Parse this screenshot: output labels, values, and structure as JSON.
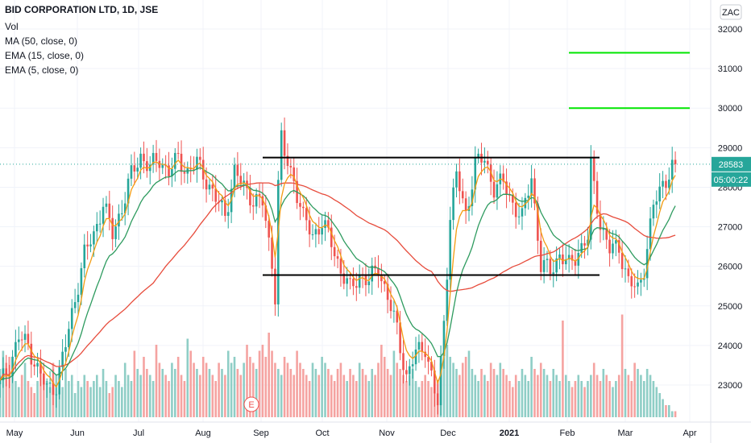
{
  "header": {
    "title": "BID CORPORATION LTD, 1D, JSE",
    "indicators": [
      "Vol",
      "MA (50, close, 0)",
      "EMA (15, close, 0)",
      "EMA (5, close, 0)"
    ],
    "currency": "ZAC"
  },
  "chart_data": {
    "type": "candlestick",
    "x_labels": [
      "May",
      "Jun",
      "Jul",
      "Aug",
      "Sep",
      "Oct",
      "Nov",
      "Dec",
      "2021",
      "Feb",
      "Mar",
      "Apr"
    ],
    "y_ticks": [
      23000,
      24000,
      25000,
      26000,
      27000,
      28000,
      29000,
      30000,
      31000,
      32000
    ],
    "ylim": [
      22200,
      32400
    ],
    "last_price": 28583,
    "countdown": "05:00:22",
    "event_marker": "E",
    "horizontal_lines": [
      {
        "value": 28750,
        "from": "Sep",
        "to": "Feb",
        "color": "#000000"
      },
      {
        "value": 25780,
        "from": "Sep",
        "to": "Feb",
        "color": "#000000"
      },
      {
        "value": 31400,
        "from": "Feb",
        "to": "Mar",
        "color": "#00e600"
      },
      {
        "value": 30000,
        "from": "Feb",
        "to": "Mar",
        "color": "#00e600"
      }
    ],
    "price_path_points": [
      [
        0,
        23000
      ],
      [
        3,
        23500
      ],
      [
        6,
        24200
      ],
      [
        9,
        24000
      ],
      [
        12,
        23400
      ],
      [
        15,
        22900
      ],
      [
        18,
        23000
      ],
      [
        21,
        24000
      ],
      [
        24,
        25200
      ],
      [
        27,
        26300
      ],
      [
        30,
        26800
      ],
      [
        33,
        27600
      ],
      [
        36,
        26800
      ],
      [
        39,
        27500
      ],
      [
        42,
        28300
      ],
      [
        45,
        28800
      ],
      [
        48,
        28500
      ],
      [
        51,
        28700
      ],
      [
        54,
        28400
      ],
      [
        57,
        28700
      ],
      [
        60,
        28400
      ],
      [
        63,
        28600
      ],
      [
        66,
        28200
      ],
      [
        69,
        27700
      ],
      [
        72,
        27300
      ],
      [
        75,
        28400
      ],
      [
        78,
        28000
      ],
      [
        81,
        27700
      ],
      [
        84,
        27600
      ],
      [
        87,
        26100
      ],
      [
        88,
        25300
      ],
      [
        89,
        28100
      ],
      [
        90,
        29200
      ],
      [
        91,
        28800
      ],
      [
        94,
        28200
      ],
      [
        97,
        27200
      ],
      [
        100,
        26800
      ],
      [
        103,
        27100
      ],
      [
        106,
        26600
      ],
      [
        109,
        25900
      ],
      [
        112,
        25400
      ],
      [
        115,
        25800
      ],
      [
        118,
        25600
      ],
      [
        121,
        26000
      ],
      [
        124,
        25200
      ],
      [
        127,
        24400
      ],
      [
        130,
        23200
      ],
      [
        133,
        23800
      ],
      [
        136,
        24000
      ],
      [
        139,
        22800
      ],
      [
        140,
        22500
      ],
      [
        142,
        24600
      ],
      [
        144,
        27300
      ],
      [
        146,
        28300
      ],
      [
        149,
        27300
      ],
      [
        152,
        28600
      ],
      [
        155,
        28700
      ],
      [
        158,
        28000
      ],
      [
        161,
        28100
      ],
      [
        164,
        27600
      ],
      [
        167,
        27200
      ],
      [
        170,
        28300
      ],
      [
        173,
        26000
      ],
      [
        176,
        25900
      ],
      [
        179,
        26300
      ],
      [
        182,
        26000
      ],
      [
        185,
        26400
      ],
      [
        188,
        26700
      ],
      [
        189,
        28500
      ],
      [
        192,
        27100
      ],
      [
        195,
        26400
      ],
      [
        198,
        26500
      ],
      [
        201,
        25600
      ],
      [
        204,
        25400
      ],
      [
        206,
        26000
      ],
      [
        209,
        27500
      ],
      [
        212,
        28100
      ],
      [
        215,
        28500
      ],
      [
        216,
        28583
      ]
    ],
    "volume": [
      0.4,
      0.55,
      0.45,
      0.5,
      0.35,
      0.3,
      0.25,
      0.35,
      0.45,
      0.3,
      0.25,
      0.2,
      0.3,
      0.4,
      0.35,
      0.3,
      0.25,
      0.45,
      0.35,
      0.3,
      0.25,
      0.4,
      0.3,
      0.35,
      0.2,
      0.3,
      0.25,
      0.35,
      0.3,
      0.25,
      0.3,
      0.35,
      0.25,
      0.4,
      0.3,
      0.2,
      0.25,
      0.35,
      0.3,
      0.25,
      0.45,
      0.35,
      0.3,
      0.55,
      0.4,
      0.35,
      0.5,
      0.4,
      0.35,
      0.3,
      0.6,
      0.45,
      0.4,
      0.35,
      0.3,
      0.45,
      0.4,
      0.5,
      0.35,
      0.3,
      0.65,
      0.55,
      0.45,
      0.4,
      0.35,
      0.5,
      0.45,
      0.4,
      0.35,
      0.3,
      0.45,
      0.4,
      0.35,
      0.55,
      0.45,
      0.5,
      0.4,
      0.35,
      0.45,
      0.6,
      0.5,
      0.45,
      0.4,
      0.55,
      0.6,
      0.5,
      0.7,
      0.55,
      0.45,
      0.4,
      0.35,
      0.5,
      0.45,
      0.4,
      0.35,
      0.55,
      0.45,
      0.4,
      0.35,
      0.3,
      0.45,
      0.4,
      0.35,
      0.5,
      0.45,
      0.4,
      0.35,
      0.3,
      0.4,
      0.45,
      0.35,
      0.3,
      0.4,
      0.35,
      0.3,
      0.45,
      0.4,
      0.35,
      0.3,
      0.4,
      0.35,
      0.45,
      0.6,
      0.5,
      0.4,
      0.35,
      0.55,
      0.45,
      0.4,
      0.35,
      0.3,
      0.35,
      0.4,
      0.3,
      0.25,
      0.3,
      0.35,
      0.3,
      0.25,
      0.2,
      0.3,
      0.45,
      0.55,
      0.6,
      0.5,
      0.45,
      0.4,
      0.35,
      0.45,
      0.5,
      0.55,
      0.4,
      0.35,
      0.3,
      0.4,
      0.35,
      0.3,
      0.45,
      0.4,
      0.35,
      0.45,
      0.4,
      0.35,
      0.3,
      0.25,
      0.35,
      0.3,
      0.4,
      0.35,
      0.3,
      0.5,
      0.4,
      0.35,
      0.45,
      0.4,
      0.35,
      0.3,
      0.4,
      0.35,
      0.3,
      0.8,
      0.35,
      0.3,
      0.25,
      0.3,
      0.35,
      0.3,
      0.25,
      0.3,
      0.35,
      0.45,
      0.35,
      0.3,
      0.4,
      0.35,
      0.3,
      0.25,
      0.3,
      0.35,
      0.85,
      0.4,
      0.35,
      0.3,
      0.45,
      0.4,
      0.35,
      0.3,
      0.4,
      0.35,
      0.3,
      0.25,
      0.2,
      0.15,
      0.1,
      0.1,
      0.05,
      0.05
    ],
    "colors": {
      "up": "#26a69a",
      "down": "#ef5350",
      "up_volume": "#8fcec6",
      "down_volume": "#f5a3a1",
      "ma50": "#e74c3c",
      "ema15": "#2e9b5f",
      "ema5": "#f39c12",
      "last_price_badge": "#26a69a",
      "last_price_line": "#26a69a",
      "grid": "#f0f3fa",
      "axis_text": "#131722"
    }
  }
}
